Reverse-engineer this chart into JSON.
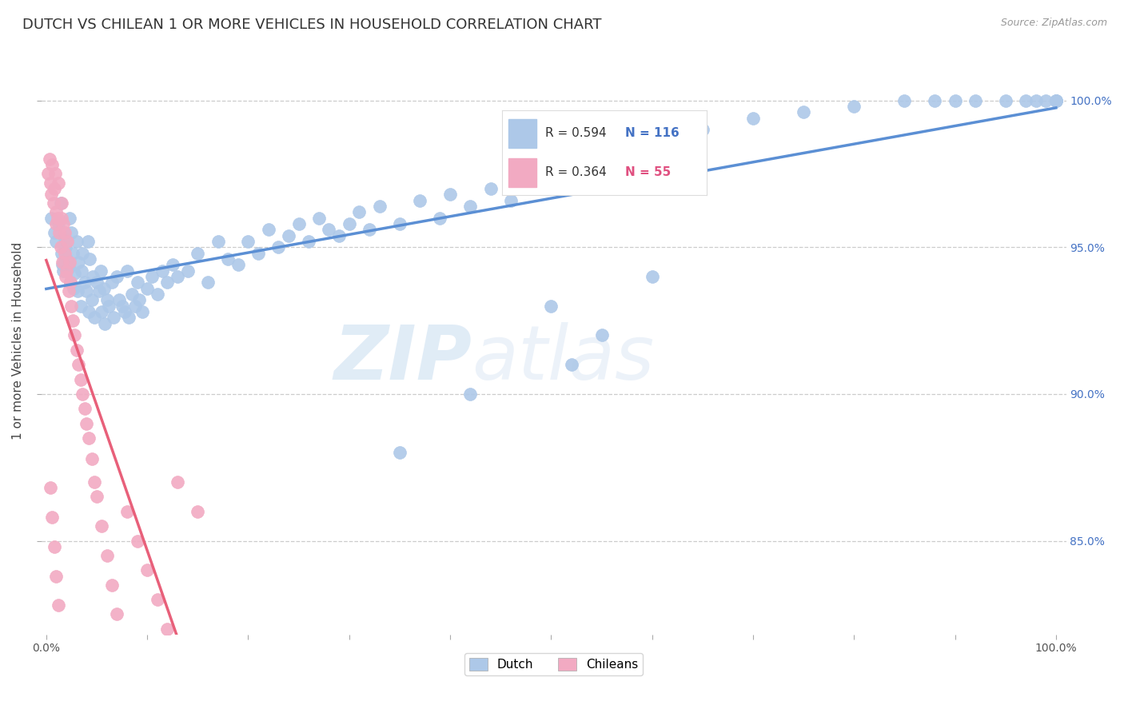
{
  "title": "DUTCH VS CHILEAN 1 OR MORE VEHICLES IN HOUSEHOLD CORRELATION CHART",
  "source": "Source: ZipAtlas.com",
  "ylabel": "1 or more Vehicles in Household",
  "y_ticks_labels": [
    "85.0%",
    "90.0%",
    "95.0%",
    "100.0%"
  ],
  "y_ticks_values": [
    0.85,
    0.9,
    0.95,
    1.0
  ],
  "legend_dutch_R": 0.594,
  "legend_dutch_N": 116,
  "legend_chilean_R": 0.364,
  "legend_chilean_N": 55,
  "dutch_color": "#adc8e8",
  "chilean_color": "#f2aac2",
  "dutch_line_color": "#5b8fd4",
  "chilean_line_color": "#e8607a",
  "background_color": "#ffffff",
  "grid_color": "#cccccc",
  "watermark_zip": "ZIP",
  "watermark_atlas": "atlas",
  "title_fontsize": 13,
  "axis_label_fontsize": 11,
  "tick_fontsize": 10,
  "dutch_x": [
    0.005,
    0.008,
    0.01,
    0.012,
    0.014,
    0.015,
    0.016,
    0.017,
    0.018,
    0.019,
    0.02,
    0.022,
    0.023,
    0.024,
    0.025,
    0.026,
    0.027,
    0.028,
    0.03,
    0.031,
    0.032,
    0.034,
    0.035,
    0.036,
    0.038,
    0.04,
    0.041,
    0.042,
    0.043,
    0.045,
    0.046,
    0.048,
    0.05,
    0.052,
    0.054,
    0.055,
    0.057,
    0.058,
    0.06,
    0.062,
    0.065,
    0.067,
    0.07,
    0.072,
    0.075,
    0.078,
    0.08,
    0.082,
    0.085,
    0.088,
    0.09,
    0.092,
    0.095,
    0.1,
    0.105,
    0.11,
    0.115,
    0.12,
    0.125,
    0.13,
    0.14,
    0.15,
    0.16,
    0.17,
    0.18,
    0.19,
    0.2,
    0.21,
    0.22,
    0.23,
    0.24,
    0.25,
    0.26,
    0.27,
    0.28,
    0.29,
    0.3,
    0.31,
    0.32,
    0.33,
    0.35,
    0.37,
    0.39,
    0.4,
    0.42,
    0.44,
    0.46,
    0.48,
    0.5,
    0.52,
    0.55,
    0.58,
    0.6,
    0.62,
    0.65,
    0.7,
    0.75,
    0.8,
    0.85,
    0.88,
    0.9,
    0.92,
    0.95,
    0.97,
    0.98,
    0.99,
    1.0,
    1.0,
    1.0,
    1.0,
    0.42,
    0.35,
    0.5,
    0.55,
    0.6,
    0.52
  ],
  "dutch_y": [
    0.96,
    0.955,
    0.952,
    0.958,
    0.965,
    0.948,
    0.944,
    0.942,
    0.953,
    0.95,
    0.946,
    0.943,
    0.96,
    0.938,
    0.955,
    0.948,
    0.936,
    0.941,
    0.952,
    0.935,
    0.945,
    0.93,
    0.942,
    0.948,
    0.938,
    0.935,
    0.952,
    0.928,
    0.946,
    0.932,
    0.94,
    0.926,
    0.938,
    0.935,
    0.942,
    0.928,
    0.936,
    0.924,
    0.932,
    0.93,
    0.938,
    0.926,
    0.94,
    0.932,
    0.93,
    0.928,
    0.942,
    0.926,
    0.934,
    0.93,
    0.938,
    0.932,
    0.928,
    0.936,
    0.94,
    0.934,
    0.942,
    0.938,
    0.944,
    0.94,
    0.942,
    0.948,
    0.938,
    0.952,
    0.946,
    0.944,
    0.952,
    0.948,
    0.956,
    0.95,
    0.954,
    0.958,
    0.952,
    0.96,
    0.956,
    0.954,
    0.958,
    0.962,
    0.956,
    0.964,
    0.958,
    0.966,
    0.96,
    0.968,
    0.964,
    0.97,
    0.966,
    0.972,
    0.974,
    0.976,
    0.978,
    0.982,
    0.984,
    0.986,
    0.99,
    0.994,
    0.996,
    0.998,
    1.0,
    1.0,
    1.0,
    1.0,
    1.0,
    1.0,
    1.0,
    1.0,
    1.0,
    1.0,
    1.0,
    1.0,
    0.9,
    0.88,
    0.93,
    0.92,
    0.94,
    0.91
  ],
  "chilean_x": [
    0.002,
    0.003,
    0.004,
    0.005,
    0.006,
    0.007,
    0.008,
    0.009,
    0.01,
    0.01,
    0.011,
    0.012,
    0.013,
    0.014,
    0.015,
    0.015,
    0.016,
    0.017,
    0.018,
    0.018,
    0.019,
    0.02,
    0.021,
    0.022,
    0.023,
    0.024,
    0.025,
    0.026,
    0.028,
    0.03,
    0.032,
    0.034,
    0.036,
    0.038,
    0.04,
    0.042,
    0.045,
    0.048,
    0.05,
    0.055,
    0.06,
    0.065,
    0.07,
    0.08,
    0.09,
    0.1,
    0.11,
    0.12,
    0.13,
    0.15,
    0.004,
    0.006,
    0.008,
    0.01,
    0.012
  ],
  "chilean_y": [
    0.975,
    0.98,
    0.972,
    0.968,
    0.978,
    0.965,
    0.97,
    0.975,
    0.958,
    0.962,
    0.96,
    0.972,
    0.955,
    0.95,
    0.96,
    0.965,
    0.945,
    0.958,
    0.948,
    0.955,
    0.94,
    0.942,
    0.952,
    0.935,
    0.945,
    0.938,
    0.93,
    0.925,
    0.92,
    0.915,
    0.91,
    0.905,
    0.9,
    0.895,
    0.89,
    0.885,
    0.878,
    0.87,
    0.865,
    0.855,
    0.845,
    0.835,
    0.825,
    0.86,
    0.85,
    0.84,
    0.83,
    0.82,
    0.87,
    0.86,
    0.868,
    0.858,
    0.848,
    0.838,
    0.828
  ]
}
